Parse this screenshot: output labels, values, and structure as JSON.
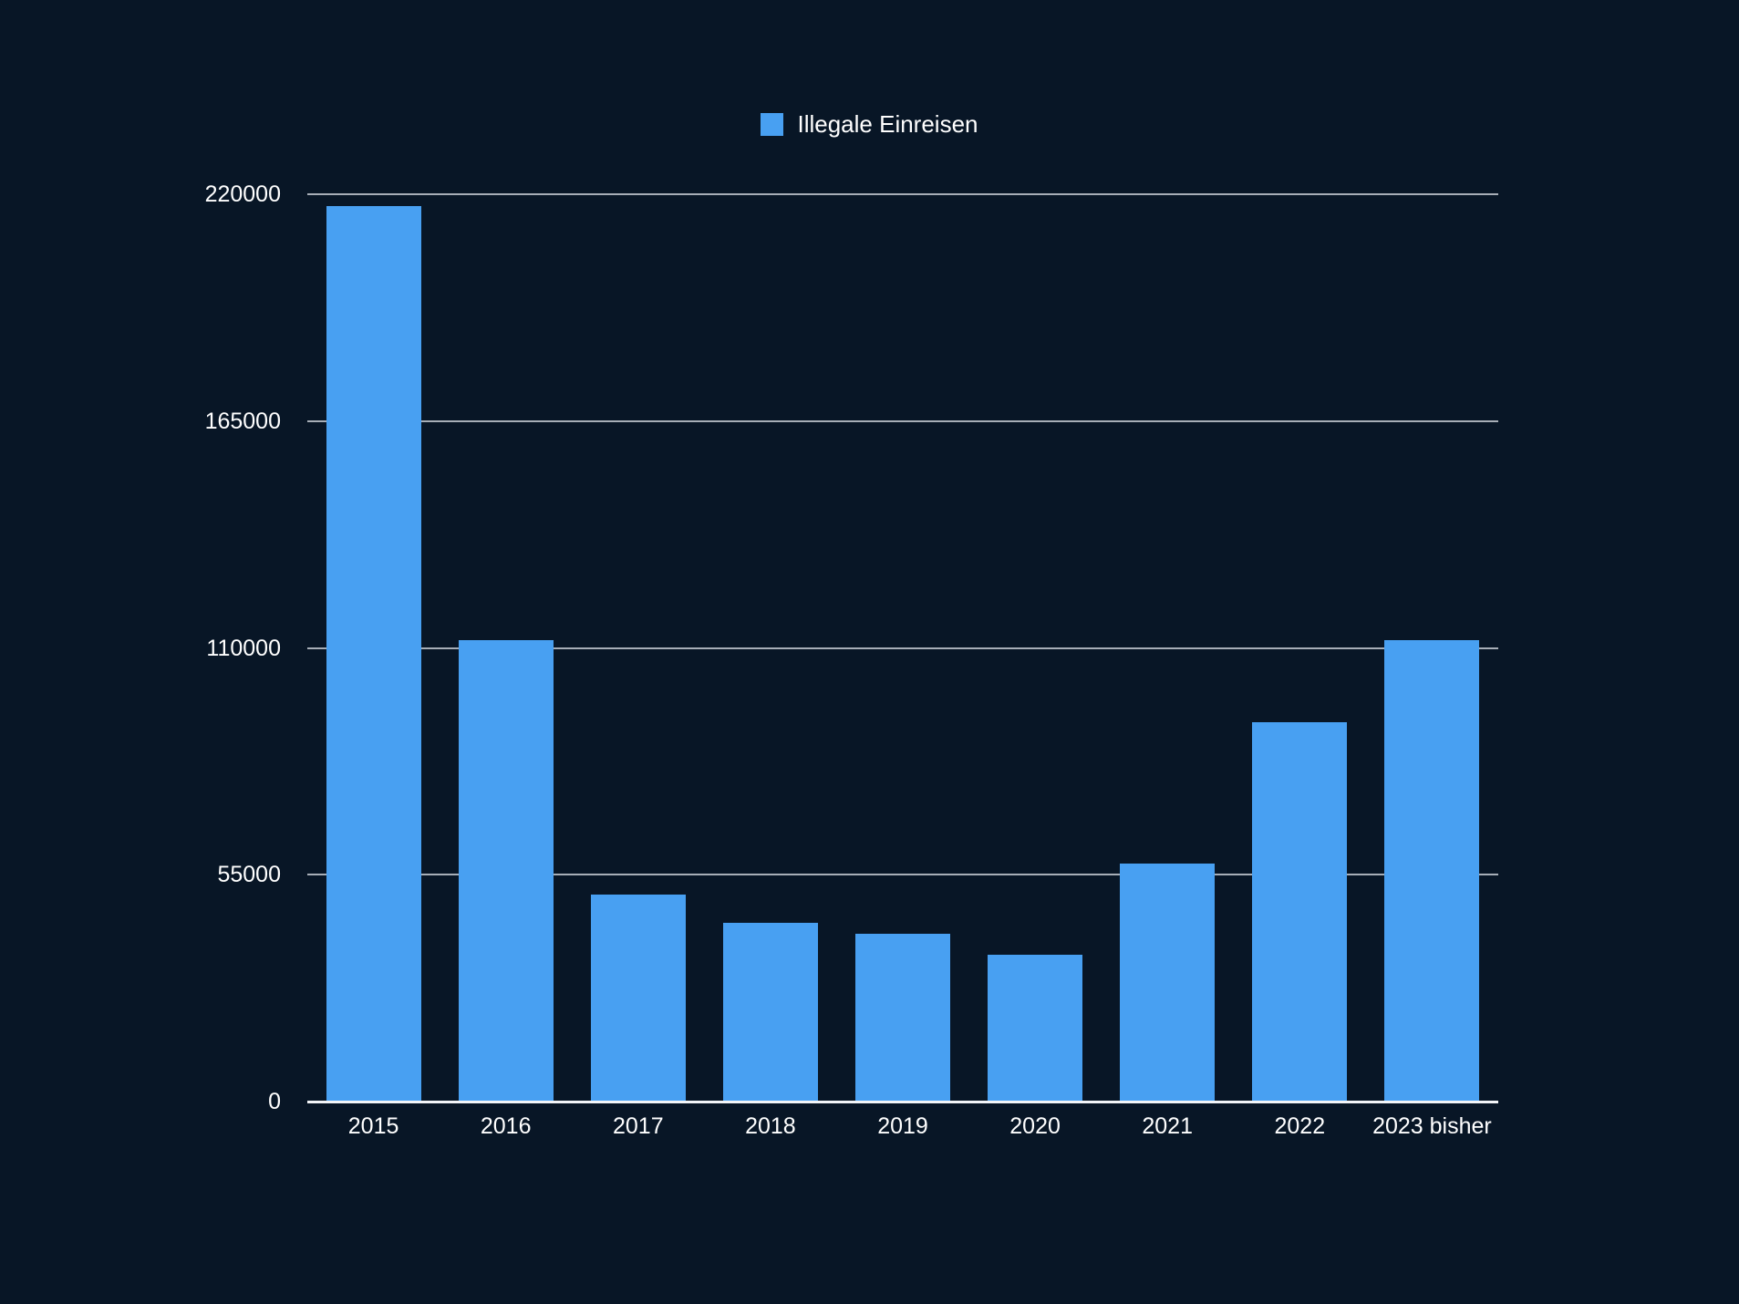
{
  "page": {
    "background_color": "#081626",
    "text_color": "#ffffff"
  },
  "legend": {
    "label": "Illegale Einreisen",
    "swatch_color": "#48a0f2"
  },
  "chart_data": {
    "type": "bar",
    "title": "",
    "legend_entries": [
      "Illegale Einreisen"
    ],
    "legend_position": "top",
    "categories": [
      "2015",
      "2016",
      "2017",
      "2018",
      "2019",
      "2020",
      "2021",
      "2022",
      "2023 bisher"
    ],
    "series": [
      {
        "name": "Illegale Einreisen",
        "values": [
          217237,
          111843,
          50154,
          43300,
          40610,
          35510,
          57637,
          91986,
          112000
        ]
      }
    ],
    "xlabel": "",
    "ylabel": "",
    "ylim": [
      0,
      220000
    ],
    "yticks": [
      0,
      55000,
      110000,
      165000,
      220000
    ],
    "ytick_labels": [
      "0",
      "55000",
      "110000",
      "165000",
      "220000"
    ],
    "grid": true,
    "bar_color": "#48a0f2",
    "gridline_color": "rgba(220,225,232,0.75)",
    "zero_line_color": "#f2f4f7",
    "axis_text_color": "#ffffff"
  }
}
